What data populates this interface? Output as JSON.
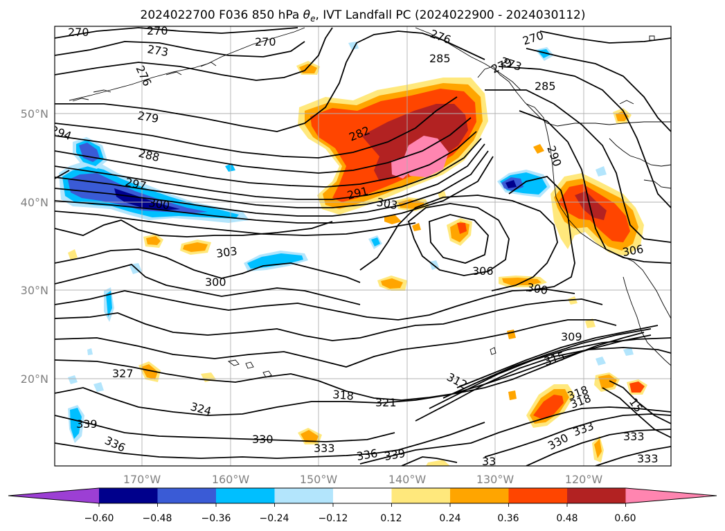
{
  "title": {
    "pre": "2024022700 F036 850 hPa ",
    "theta": "θ",
    "sub": "e",
    "post": ", IVT Landfall PC (2024022900 - 2024030112)"
  },
  "lat_labels": [
    "50°N",
    "40°N",
    "30°N",
    "20°N"
  ],
  "lon_labels": [
    "170°W",
    "160°W",
    "150°W",
    "140°W",
    "130°W",
    "120°W"
  ],
  "colorbar": {
    "ticks": [
      "−0.60",
      "−0.48",
      "−0.36",
      "−0.24",
      "−0.12",
      "0.12",
      "0.24",
      "0.36",
      "0.48",
      "0.60"
    ],
    "colors": [
      "#9c3fd4",
      "#00008c",
      "#3a5bd6",
      "#00bfff",
      "#b3e5fc",
      "#ffffff",
      "#ffe87c",
      "#ffa500",
      "#ff4500",
      "#b22222",
      "#ff85b0"
    ]
  },
  "contour_labels": [
    "270",
    "270",
    "270",
    "273",
    "276",
    "279",
    "288",
    "294",
    "297",
    "300",
    "303",
    "300",
    "282",
    "291",
    "303",
    "276",
    "285",
    "273",
    "279",
    "270",
    "285",
    "290",
    "306",
    "306",
    "300",
    "309",
    "327",
    "324",
    "339",
    "336",
    "330",
    "333",
    "336",
    "339",
    "318",
    "321",
    "312",
    "315",
    "318",
    "318",
    "330",
    "333",
    "333",
    "333",
    "33",
    "15"
  ]
}
